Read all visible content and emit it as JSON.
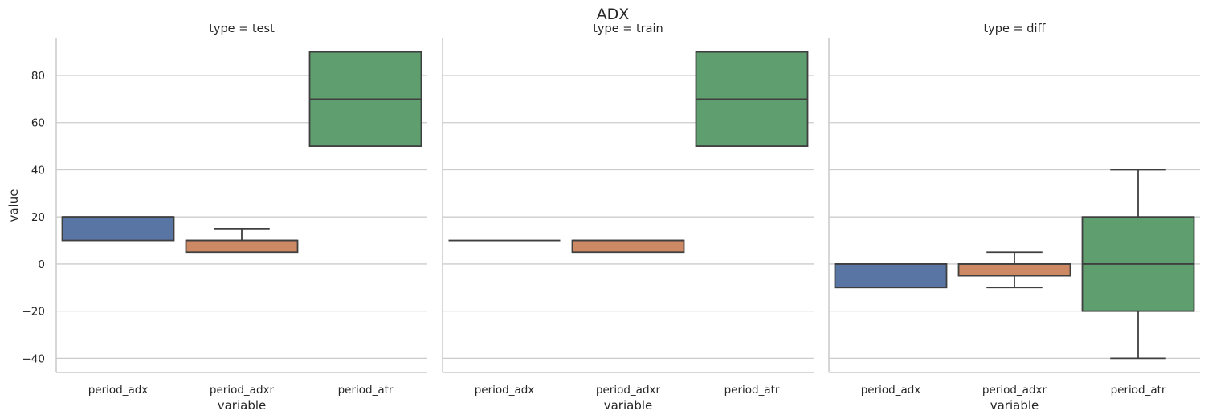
{
  "chart_data": {
    "type": "box",
    "title": "ADX",
    "ylabel": "value",
    "xlabel": "variable",
    "categories": [
      "period_adx",
      "period_adxr",
      "period_atr"
    ],
    "colors": [
      "#5975a4",
      "#cc8963",
      "#5f9e6e"
    ],
    "ylim": [
      -46,
      96
    ],
    "yticks": [
      -40,
      -20,
      0,
      20,
      40,
      60,
      80
    ],
    "grid": true,
    "panels": [
      {
        "title": "type = test",
        "boxes": [
          {
            "category": "period_adx",
            "whislo": 10,
            "q1": 10,
            "med": 20,
            "q3": 20,
            "whishi": 20
          },
          {
            "category": "period_adxr",
            "whislo": 5,
            "q1": 5,
            "med": 10,
            "q3": 10,
            "whishi": 15
          },
          {
            "category": "period_atr",
            "whislo": 50,
            "q1": 50,
            "med": 70,
            "q3": 90,
            "whishi": 90
          }
        ]
      },
      {
        "title": "type = train",
        "boxes": [
          {
            "category": "period_adx",
            "whislo": 10,
            "q1": 10,
            "med": 10,
            "q3": 10,
            "whishi": 10
          },
          {
            "category": "period_adxr",
            "whislo": 5,
            "q1": 5,
            "med": 10,
            "q3": 10,
            "whishi": 10
          },
          {
            "category": "period_atr",
            "whislo": 50,
            "q1": 50,
            "med": 70,
            "q3": 90,
            "whishi": 90
          }
        ]
      },
      {
        "title": "type = diff",
        "boxes": [
          {
            "category": "period_adx",
            "whislo": -10,
            "q1": -10,
            "med": 0,
            "q3": 0,
            "whishi": 0
          },
          {
            "category": "period_adxr",
            "whislo": -10,
            "q1": -5,
            "med": 0,
            "q3": 0,
            "whishi": 5
          },
          {
            "category": "period_atr",
            "whislo": -40,
            "q1": -20,
            "med": 0,
            "q3": 20,
            "whishi": 40
          }
        ]
      }
    ]
  }
}
